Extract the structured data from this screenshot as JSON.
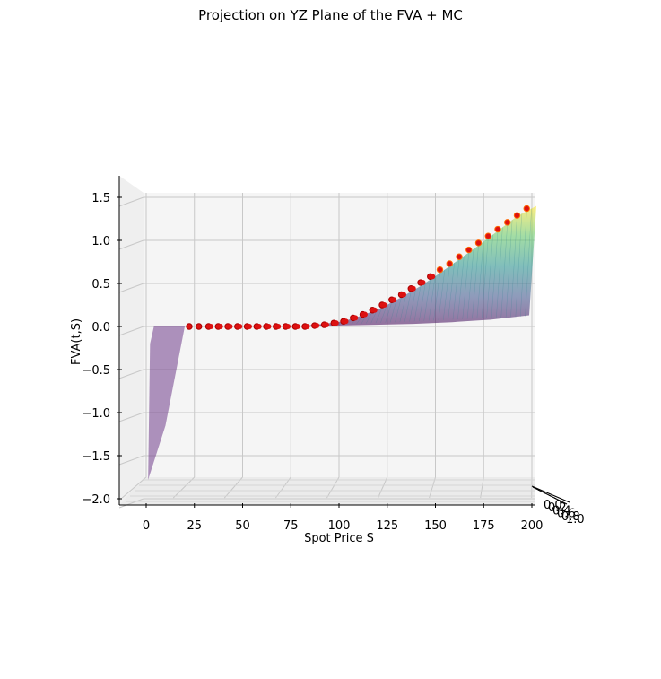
{
  "chart_data": {
    "type": "surface3d",
    "title": "Projection on YZ Plane of the FVA + MC",
    "xlabel": "Spot Price S",
    "ylabel": "FVA(t,S)",
    "zaxis_label": "",
    "xlim": [
      -12,
      205
    ],
    "ylim": [
      -2.05,
      1.55
    ],
    "x_ticks": [
      "0",
      "25",
      "50",
      "75",
      "100",
      "125",
      "150",
      "175",
      "200"
    ],
    "x_tick_values": [
      0,
      25,
      50,
      75,
      100,
      125,
      150,
      175,
      200
    ],
    "y_ticks": [
      "−2.0",
      "−1.5",
      "−1.0",
      "−0.5",
      "0.0",
      "0.5",
      "1.0",
      "1.5"
    ],
    "y_tick_values": [
      -2.0,
      -1.5,
      -1.0,
      -0.5,
      0.0,
      0.5,
      1.0,
      1.5
    ],
    "depth_ticks": [
      "0.0",
      "0.2",
      "0.4",
      "0.6",
      "0.8",
      "1.0"
    ],
    "grid": true,
    "surface_colormap": "viridis",
    "surface_alpha": 0.55,
    "mc_color": "#dd1111",
    "mc_edge_color": "#ff6600",
    "surface_upper": {
      "x": [
        0,
        20,
        40,
        60,
        80,
        90,
        100,
        110,
        120,
        130,
        140,
        150,
        160,
        170,
        180,
        190,
        200
      ],
      "y": [
        0,
        0.0,
        0.0,
        0.0,
        0.01,
        0.03,
        0.06,
        0.13,
        0.22,
        0.34,
        0.47,
        0.62,
        0.78,
        0.94,
        1.11,
        1.28,
        1.4
      ]
    },
    "surface_lower": {
      "x": [
        0,
        20,
        40,
        60,
        80,
        100,
        120,
        140,
        160,
        180,
        200
      ],
      "y": [
        -1.78,
        0.0,
        0.0,
        0.0,
        0.0,
        0.01,
        0.02,
        0.03,
        0.05,
        0.08,
        0.13
      ]
    },
    "mc_points": {
      "x": [
        20,
        25,
        30,
        35,
        40,
        45,
        50,
        55,
        60,
        65,
        70,
        75,
        80,
        85,
        90,
        95,
        100,
        105,
        110,
        115,
        120,
        125,
        130,
        135,
        140,
        145,
        150,
        155,
        160,
        165,
        170,
        175,
        180,
        185,
        190,
        195
      ],
      "y": [
        0.0,
        0.0,
        0.0,
        0.0,
        0.0,
        0.0,
        0.0,
        0.0,
        0.0,
        0.0,
        0.0,
        0.0,
        0.0,
        0.01,
        0.02,
        0.04,
        0.06,
        0.1,
        0.14,
        0.19,
        0.25,
        0.31,
        0.37,
        0.44,
        0.51,
        0.58,
        0.66,
        0.73,
        0.81,
        0.89,
        0.97,
        1.05,
        1.13,
        1.21,
        1.29,
        1.37
      ]
    }
  }
}
